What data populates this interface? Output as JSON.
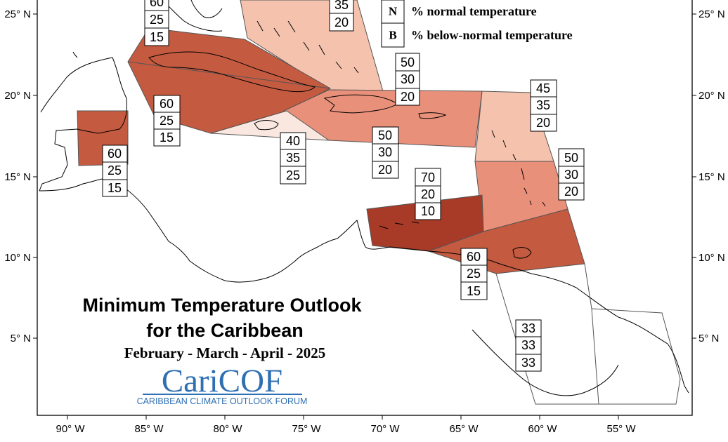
{
  "title": {
    "line1": "Minimum Temperature Outlook",
    "line2": "for the Caribbean",
    "period": "February - March - April - 2025"
  },
  "logo": {
    "name": "CariCOF",
    "tagline": "CARIBBEAN CLIMATE OUTLOOK FORUM"
  },
  "legend": [
    {
      "letter": "N",
      "text": "% normal temperature"
    },
    {
      "letter": "B",
      "text": "% below-normal temperature"
    }
  ],
  "axes": {
    "x_ticks": [
      "90° W",
      "85° W",
      "80° W",
      "75° W",
      "70° W",
      "65° W",
      "60° W",
      "55° W"
    ],
    "y_ticks": [
      "25° N",
      "20° N",
      "15° N",
      "10° N",
      "5° N"
    ]
  },
  "colors": {
    "p70": "#a83a28",
    "p60": "#c45a40",
    "p50": "#e8907a",
    "p45": "#f5c2ae",
    "p40": "#fae8e0",
    "p33": "#ffffff"
  },
  "forecast_boxes": [
    {
      "id": "bahamas-west",
      "values": [
        "60",
        "25",
        "15"
      ]
    },
    {
      "id": "bahamas-east",
      "values": [
        "35",
        "20"
      ]
    },
    {
      "id": "hispaniola-north",
      "values": [
        "50",
        "30",
        "20"
      ]
    },
    {
      "id": "cuba",
      "values": [
        "60",
        "25",
        "15"
      ]
    },
    {
      "id": "belize",
      "values": [
        "60",
        "25",
        "15"
      ]
    },
    {
      "id": "jamaica",
      "values": [
        "40",
        "35",
        "25"
      ]
    },
    {
      "id": "hispaniola-south",
      "values": [
        "50",
        "30",
        "20"
      ]
    },
    {
      "id": "leeward-islands",
      "values": [
        "45",
        "35",
        "20"
      ]
    },
    {
      "id": "windward-islands",
      "values": [
        "50",
        "30",
        "20"
      ]
    },
    {
      "id": "abc-islands",
      "values": [
        "70",
        "20",
        "10"
      ]
    },
    {
      "id": "trinidad",
      "values": [
        "60",
        "25",
        "15"
      ]
    },
    {
      "id": "guianas",
      "values": [
        "33",
        "33",
        "33"
      ]
    }
  ]
}
